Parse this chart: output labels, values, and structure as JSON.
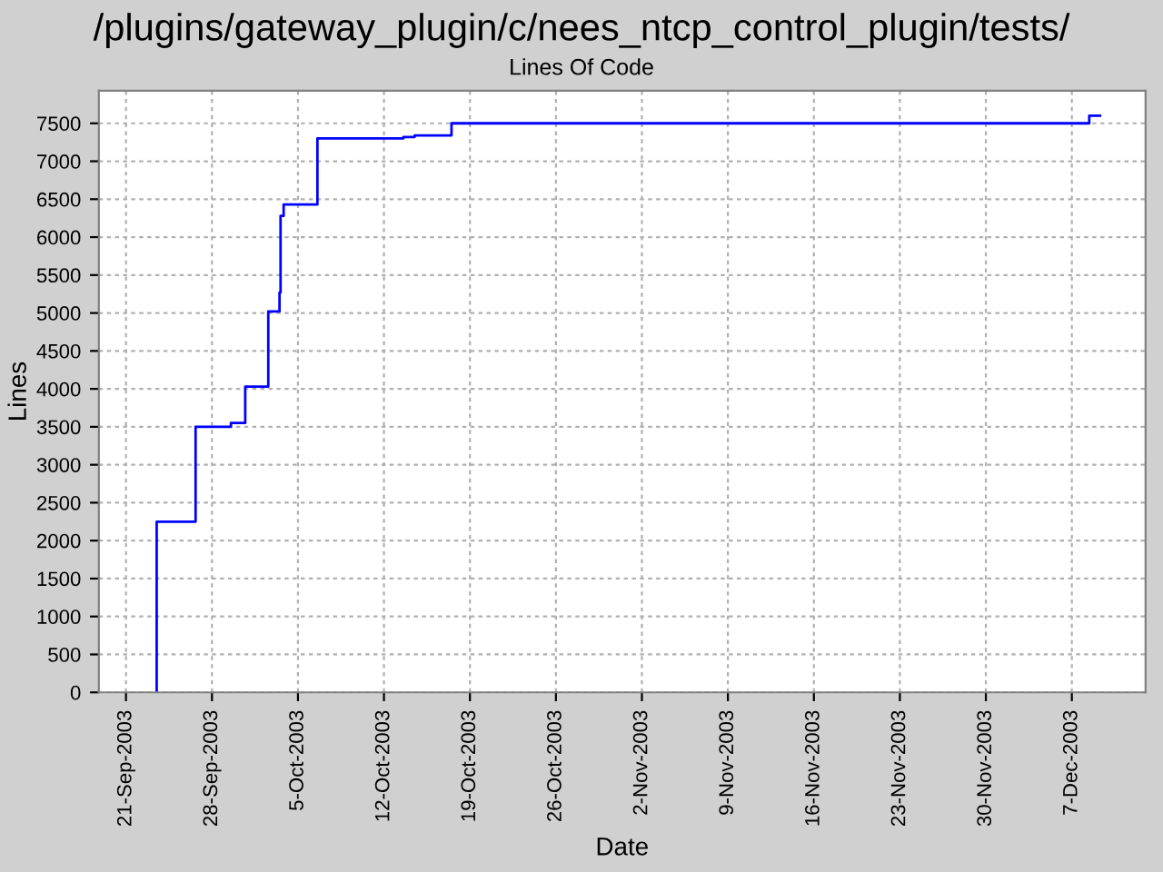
{
  "chart_data": {
    "type": "step",
    "title": "/plugins/gateway_plugin/c/nees_ntcp_control_plugin/tests/",
    "subtitle": "Lines Of Code",
    "xlabel": "Date",
    "ylabel": "Lines",
    "series": [
      {
        "color": "#0000ff",
        "x": [
          "2003-09-23T12:00",
          "2003-09-23T12:00",
          "2003-09-26T16:00",
          "2003-09-29T13:00",
          "2003-09-30T17:00",
          "2003-10-02T14:00",
          "2003-10-03T12:00",
          "2003-10-03T14:00",
          "2003-10-03T20:00",
          "2003-10-06T14:00",
          "2003-10-13T14:00",
          "2003-10-14T12:00",
          "2003-10-17T12:00",
          "2003-12-08T10:00",
          "2003-12-09T07:00"
        ],
        "values": [
          0,
          2250,
          3500,
          3550,
          4030,
          5020,
          5270,
          6280,
          6430,
          7300,
          7320,
          7340,
          7500,
          7600,
          7600
        ]
      }
    ],
    "xlim": [
      "2003-09-18T19:00",
      "2003-12-13T00:00"
    ],
    "xticks": [
      {
        "value": "2003-09-21",
        "label": "21-Sep-2003"
      },
      {
        "value": "2003-09-28",
        "label": "28-Sep-2003"
      },
      {
        "value": "2003-10-05",
        "label": "5-Oct-2003"
      },
      {
        "value": "2003-10-12",
        "label": "12-Oct-2003"
      },
      {
        "value": "2003-10-19",
        "label": "19-Oct-2003"
      },
      {
        "value": "2003-10-26",
        "label": "26-Oct-2003"
      },
      {
        "value": "2003-11-02",
        "label": "2-Nov-2003"
      },
      {
        "value": "2003-11-09",
        "label": "9-Nov-2003"
      },
      {
        "value": "2003-11-16",
        "label": "16-Nov-2003"
      },
      {
        "value": "2003-11-23",
        "label": "23-Nov-2003"
      },
      {
        "value": "2003-11-30",
        "label": "30-Nov-2003"
      },
      {
        "value": "2003-12-07",
        "label": "7-Dec-2003"
      }
    ],
    "ylim": [
      0,
      7930
    ],
    "yticks": [
      0,
      500,
      1000,
      1500,
      2000,
      2500,
      3000,
      3500,
      4000,
      4500,
      5000,
      5500,
      6000,
      6500,
      7000,
      7500
    ],
    "grid": true,
    "line_style": "solid",
    "marker": "none"
  }
}
